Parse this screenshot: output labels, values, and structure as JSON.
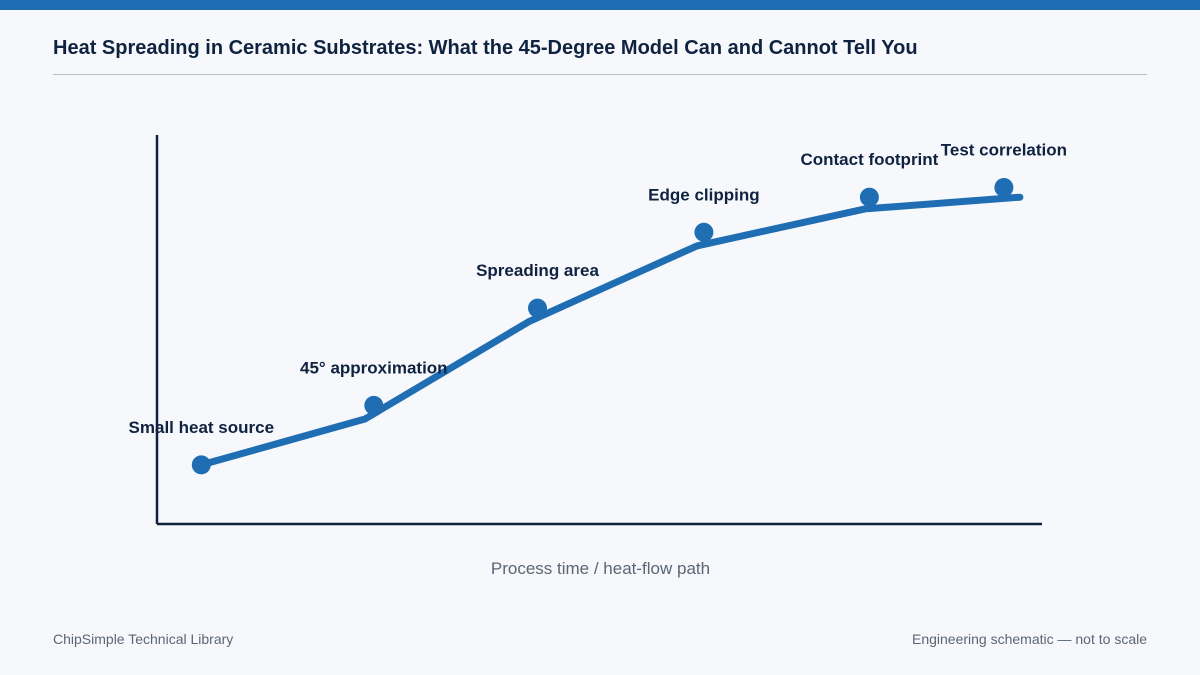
{
  "header": {
    "title": "Heat Spreading in Ceramic Substrates: What the 45-Degree Model Can and Cannot Tell You"
  },
  "footer": {
    "left": "ChipSimple Technical Library",
    "right": "Engineering schematic — not to scale"
  },
  "colors": {
    "accent": "#1f6db3",
    "axis": "#0f2340",
    "label": "#0f2340",
    "xlabel": "#5b6675"
  },
  "chart_data": {
    "type": "line",
    "title": "",
    "xlabel": "Process time / heat-flow path",
    "ylabel": "",
    "xlim": [
      0,
      1
    ],
    "ylim": [
      0,
      1
    ],
    "grid": false,
    "legend": "none",
    "series": [
      {
        "x": [
          0.05,
          0.235,
          0.42,
          0.61,
          0.8,
          0.975
        ],
        "y": [
          0.152,
          0.27,
          0.52,
          0.715,
          0.81,
          0.84
        ]
      }
    ],
    "points": [
      {
        "label": "Small heat source",
        "x": 0.05,
        "y": 0.152
      },
      {
        "label": "45° approximation",
        "x": 0.245,
        "y": 0.305
      },
      {
        "label": "Spreading area",
        "x": 0.43,
        "y": 0.555
      },
      {
        "label": "Edge clipping",
        "x": 0.618,
        "y": 0.75
      },
      {
        "label": "Contact footprint",
        "x": 0.805,
        "y": 0.84
      },
      {
        "label": "Test correlation",
        "x": 0.957,
        "y": 0.865
      }
    ]
  }
}
